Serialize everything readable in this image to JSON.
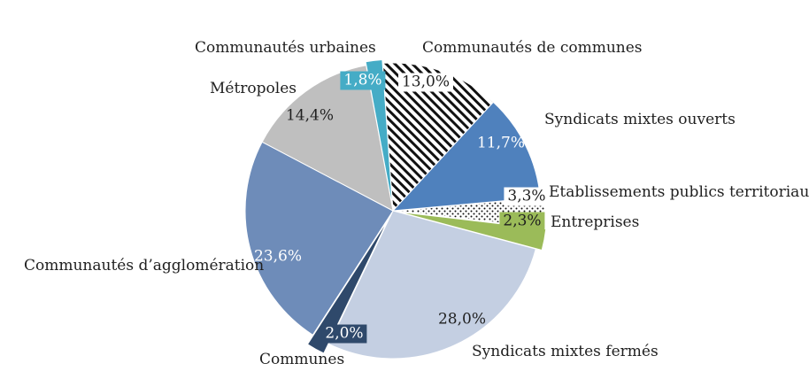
{
  "chart_data": {
    "type": "pie",
    "title": "",
    "unit": "%",
    "direction": "clockwise",
    "start_angle_deg": -94,
    "rotation_deg": -4,
    "legend_position": "none",
    "label_style": "category-outside-percent-inside",
    "slices": [
      {
        "label": "Communautés de communes",
        "value": 13.0,
        "pct_label": "13,0%",
        "pattern": "hatch",
        "pattern_colors": {
          "fg": "#111111",
          "bg": "#ffffff"
        },
        "exploded": false
      },
      {
        "label": "Syndicats mixtes ouverts",
        "value": 11.7,
        "pct_label": "11,7%",
        "color": "#4F81BD",
        "exploded": false
      },
      {
        "label": "Etablissements publics territoriaux",
        "value": 3.3,
        "pct_label": "3,3%",
        "pattern": "dots",
        "pattern_colors": {
          "fg": "#111111",
          "bg": "#ffffff"
        },
        "exploded": true
      },
      {
        "label": "Entreprises",
        "value": 2.3,
        "pct_label": "2,3%",
        "color": "#9BBB59",
        "exploded": true
      },
      {
        "label": "Syndicats mixtes fermés",
        "value": 28.0,
        "pct_label": "28,0%",
        "color": "#C4CFE2",
        "exploded": false
      },
      {
        "label": "Communes",
        "value": 2.0,
        "pct_label": "2,0%",
        "color": "#2F496B",
        "exploded": true
      },
      {
        "label": "Communautés d’agglomération",
        "value": 23.6,
        "pct_label": "23,6%",
        "color": "#6E8CB9",
        "exploded": false
      },
      {
        "label": "Métropoles",
        "value": 14.4,
        "pct_label": "14,4%",
        "color": "#BFBFBF",
        "exploded": false
      },
      {
        "label": "Communautés urbaines",
        "value": 1.8,
        "pct_label": "1,8%",
        "color": "#45ACC6",
        "exploded": true
      }
    ]
  }
}
